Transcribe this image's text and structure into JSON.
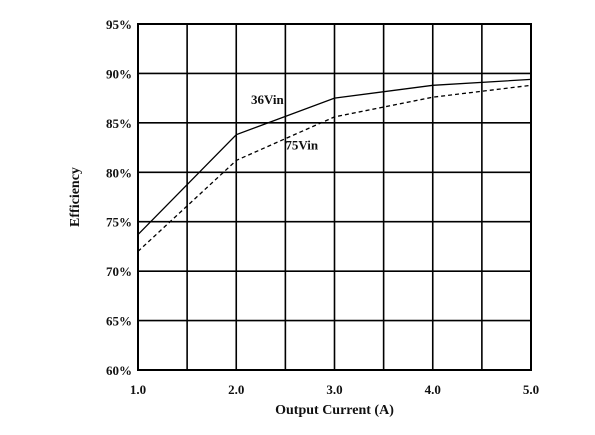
{
  "chart_data": {
    "type": "line",
    "title": "",
    "xlabel": "Output Current (A)",
    "ylabel": "Efficiency",
    "xlim": [
      1.0,
      5.0
    ],
    "ylim": [
      60,
      95
    ],
    "x_ticks": [
      1.0,
      1.5,
      2.0,
      2.5,
      3.0,
      3.5,
      4.0,
      4.5,
      5.0
    ],
    "x_tick_labels": [
      "1.0",
      "2.0",
      "3.0",
      "4.0",
      "5.0"
    ],
    "x_tick_label_values": [
      1.0,
      2.0,
      3.0,
      4.0,
      5.0
    ],
    "y_ticks": [
      60,
      65,
      70,
      75,
      80,
      85,
      90,
      95
    ],
    "y_tick_labels": [
      "60%",
      "65%",
      "70%",
      "75%",
      "80%",
      "85%",
      "90%",
      "95%"
    ],
    "grid": true,
    "series": [
      {
        "name": "36Vin",
        "style": "solid",
        "color": "#000000",
        "x": [
          1.0,
          2.0,
          3.0,
          4.0,
          5.0
        ],
        "y": [
          73.7,
          83.8,
          87.5,
          88.8,
          89.4
        ]
      },
      {
        "name": "75Vin",
        "style": "dashed",
        "color": "#000000",
        "x": [
          1.0,
          2.0,
          3.0,
          4.0,
          5.0
        ],
        "y": [
          72.0,
          81.2,
          85.6,
          87.6,
          88.8
        ]
      }
    ],
    "annotations": [
      {
        "text": "36Vin",
        "series": "36Vin",
        "x": 2.15,
        "y": 86.9
      },
      {
        "text": "75Vin",
        "series": "75Vin",
        "x": 2.5,
        "y": 82.3
      }
    ]
  }
}
